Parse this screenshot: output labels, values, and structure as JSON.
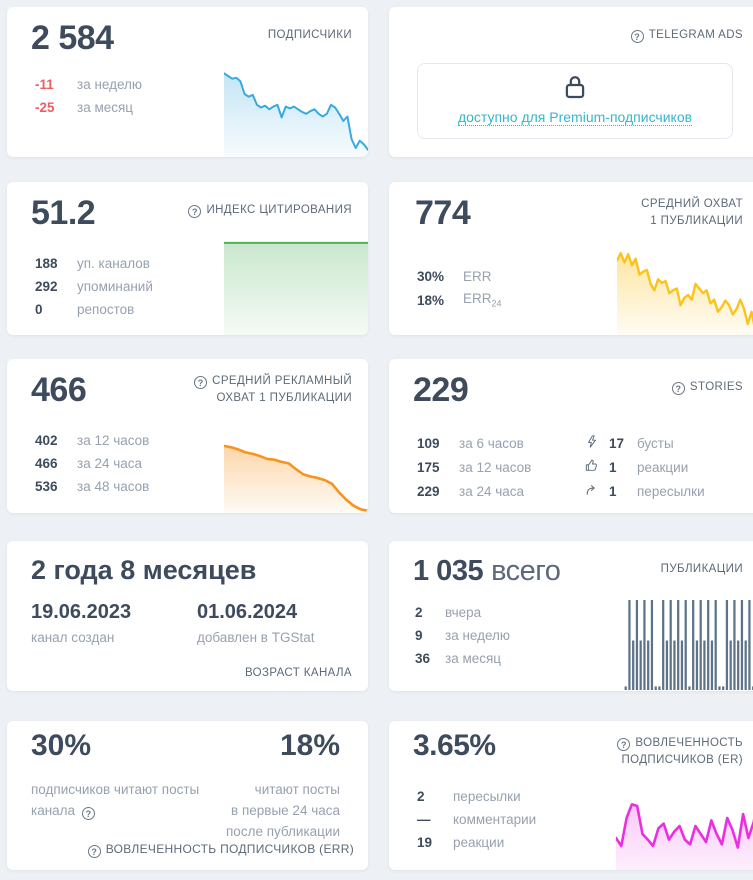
{
  "icons": {
    "help": "?"
  },
  "cards": {
    "subscribers": {
      "title": "ПОДПИСЧИКИ",
      "value": "2 584",
      "stats": [
        {
          "num": "-11",
          "label": "за неделю"
        },
        {
          "num": "-25",
          "label": "за месяц"
        }
      ]
    },
    "telegram_ads": {
      "title": "TELEGRAM ADS",
      "link": "доступно для Premium-подписчиков"
    },
    "citation_index": {
      "title": "ИНДЕКС ЦИТИРОВАНИЯ",
      "value": "51.2",
      "stats": [
        {
          "num": "188",
          "label": "уп. каналов"
        },
        {
          "num": "292",
          "label": "упоминаний"
        },
        {
          "num": "0",
          "label": "репостов"
        }
      ]
    },
    "avg_reach": {
      "title_line1": "СРЕДНИЙ ОХВАТ",
      "title_line2": "1 ПУБЛИКАЦИИ",
      "value": "774",
      "stats": [
        {
          "num": "30%",
          "label": "ERR",
          "label_sub": ""
        },
        {
          "num": "18%",
          "label": "ERR",
          "label_sub": "24"
        }
      ]
    },
    "avg_ad_reach": {
      "title_line1": "СРЕДНИЙ РЕКЛАМНЫЙ",
      "title_line2": "ОХВАТ 1 ПУБЛИКАЦИИ",
      "value": "466",
      "stats": [
        {
          "num": "402",
          "label": "за 12 часов"
        },
        {
          "num": "466",
          "label": "за 24 часа"
        },
        {
          "num": "536",
          "label": "за 48 часов"
        }
      ]
    },
    "stories": {
      "title": "STORIES",
      "value": "229",
      "stats": [
        {
          "num": "109",
          "label": "за 6 часов"
        },
        {
          "num": "175",
          "label": "за 12 часов"
        },
        {
          "num": "229",
          "label": "за 24 часа"
        }
      ],
      "stats2": [
        {
          "icon": "boost-icon",
          "num": "17",
          "label": "бусты"
        },
        {
          "icon": "thumb-up-icon",
          "num": "1",
          "label": "реакции"
        },
        {
          "icon": "forward-icon",
          "num": "1",
          "label": "пересылки"
        }
      ]
    },
    "channel_age": {
      "value": "2 года 8 месяцев",
      "created_date": "19.06.2023",
      "created_label": "канал создан",
      "added_date": "01.06.2024",
      "added_label": "добавлен в TGStat",
      "title": "ВОЗРАСТ КАНАЛА"
    },
    "publications": {
      "title": "ПУБЛИКАЦИИ",
      "value": "1 035",
      "value_suffix": "всего",
      "stats": [
        {
          "num": "2",
          "label": "вчера"
        },
        {
          "num": "9",
          "label": "за неделю"
        },
        {
          "num": "36",
          "label": "за месяц"
        }
      ]
    },
    "err": {
      "left_value": "30%",
      "left_label": "подписчиков читают посты канала",
      "right_value": "18%",
      "right_label_line1": "читают посты",
      "right_label_line2": "в первые 24 часа",
      "right_label_line3": "после публикации",
      "title": "ВОВЛЕЧЕННОСТЬ ПОДПИСЧИКОВ (ERR)"
    },
    "er": {
      "title_line1": "ВОВЛЕЧЕННОСТЬ",
      "title_line2": "ПОДПИСЧИКОВ (ER)",
      "value": "3.65%",
      "stats": [
        {
          "num": "2",
          "label": "пересылки"
        },
        {
          "num": "—",
          "label": "комментарии"
        },
        {
          "num": "19",
          "label": "реакции"
        }
      ]
    }
  },
  "colors": {
    "background": "#edf0f4",
    "card": "#ffffff",
    "text_dark": "#3e4b5d",
    "text_gray": "#97a1af",
    "title_gray": "#5d6a78",
    "negative_red": "#ee5c64",
    "premium_teal": "#36b6cc",
    "chart_blue": "#3aa9de",
    "chart_green": "#4fb25a",
    "chart_yellow": "#fcc31d",
    "chart_orange": "#f7941e",
    "chart_magenta": "#e92fe0",
    "chart_bars": "#5e7389"
  },
  "chart_data": [
    {
      "id": "subscribers",
      "type": "area",
      "title": "ПОДПИСЧИКИ sparkline (declining)",
      "color": "#3aa9de",
      "stroke": 2,
      "fill_from": "rgba(58,169,222,0.30)",
      "fill_to": "rgba(58,169,222,0.04)",
      "points": [
        0.07,
        0.1,
        0.13,
        0.12,
        0.16,
        0.3,
        0.33,
        0.31,
        0.42,
        0.45,
        0.43,
        0.47,
        0.44,
        0.42,
        0.56,
        0.44,
        0.46,
        0.44,
        0.47,
        0.5,
        0.52,
        0.49,
        0.47,
        0.52,
        0.55,
        0.52,
        0.42,
        0.45,
        0.52,
        0.6,
        0.55,
        0.8,
        0.9,
        0.82,
        0.86,
        0.92
      ]
    },
    {
      "id": "citation",
      "type": "area",
      "title": "ИНДЕКС ЦИТИРОВАНИЯ sparkline (flat)",
      "color": "#4fb25a",
      "stroke": 2,
      "fill_from": "rgba(79,178,90,0.30)",
      "fill_to": "rgba(79,178,90,0.06)",
      "points": [
        0.03,
        0.03
      ]
    },
    {
      "id": "avg_reach",
      "type": "area",
      "title": "СРЕДНИЙ ОХВАТ sparkline (declining, jagged)",
      "color": "#fcc31d",
      "stroke": 2.4,
      "fill_from": "rgba(252,195,29,0.42)",
      "fill_to": "rgba(252,195,29,0.05)",
      "points": [
        0.2,
        0.12,
        0.22,
        0.13,
        0.25,
        0.18,
        0.35,
        0.32,
        0.3,
        0.45,
        0.52,
        0.4,
        0.44,
        0.42,
        0.55,
        0.52,
        0.5,
        0.68,
        0.6,
        0.57,
        0.62,
        0.45,
        0.5,
        0.55,
        0.52,
        0.66,
        0.62,
        0.75,
        0.7,
        0.63,
        0.68,
        0.78,
        0.72,
        0.62,
        0.72,
        0.88,
        0.75,
        0.95,
        0.82
      ]
    },
    {
      "id": "avg_ad_reach",
      "type": "area",
      "title": "СРЕДНИЙ РЕКЛАМНЫЙ ОХВАТ sparkline (smooth decline)",
      "color": "#f7941e",
      "stroke": 2.6,
      "fill_from": "rgba(247,148,30,0.38)",
      "fill_to": "rgba(247,148,30,0.04)",
      "points": [
        0.08,
        0.1,
        0.13,
        0.17,
        0.19,
        0.22,
        0.26,
        0.27,
        0.3,
        0.32,
        0.4,
        0.47,
        0.5,
        0.52,
        0.55,
        0.6,
        0.72,
        0.82,
        0.9,
        0.95,
        0.97
      ]
    },
    {
      "id": "publications",
      "type": "bar",
      "title": "ПУБЛИКАЦИИ bar pattern",
      "color": "#5e7389",
      "bars": [
        0.04,
        1,
        0.55,
        1,
        0.55,
        1,
        0.55,
        1,
        0.04,
        0.04,
        1,
        0.55,
        1,
        0.55,
        1,
        0.55,
        1,
        0.04,
        1,
        0.55,
        1,
        0.55,
        1,
        0.55,
        1,
        0.04,
        0.04,
        1,
        0.55,
        1,
        0.55,
        1,
        0.55,
        1,
        0.04,
        1
      ]
    },
    {
      "id": "er",
      "type": "area",
      "title": "ВОВЛЕЧЕННОСТЬ (ER) sparkline (spiky)",
      "color": "#e92fe0",
      "stroke": 2.6,
      "fill_from": "rgba(233,47,224,0.28)",
      "fill_to": "rgba(233,47,224,0.08)",
      "points": [
        0.6,
        0.7,
        0.35,
        0.18,
        0.2,
        0.55,
        0.62,
        0.7,
        0.48,
        0.42,
        0.62,
        0.52,
        0.45,
        0.62,
        0.68,
        0.45,
        0.55,
        0.65,
        0.38,
        0.55,
        0.68,
        0.35,
        0.5,
        0.72,
        0.3,
        0.6,
        0.4,
        0.05
      ]
    }
  ]
}
